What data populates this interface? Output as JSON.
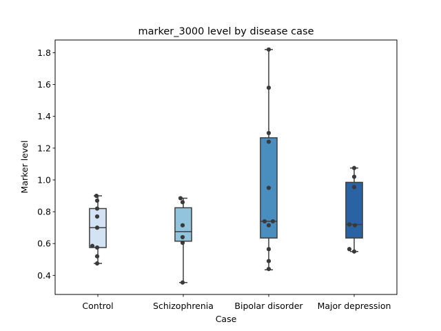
{
  "chart_data": {
    "type": "box",
    "title": "marker_3000 level by disease case",
    "xlabel": "Case",
    "ylabel": "Marker level",
    "ylim": [
      0.28,
      1.88
    ],
    "yticks": [
      0.4,
      0.6,
      0.8,
      1.0,
      1.2,
      1.4,
      1.6,
      1.8
    ],
    "ytick_labels": [
      "0.4",
      "0.6",
      "0.8",
      "1.0",
      "1.2",
      "1.4",
      "1.6",
      "1.8"
    ],
    "grid": false,
    "categories": [
      "Control",
      "Schizophrenia",
      "Bipolar disorder",
      "Major depression"
    ],
    "colors": [
      "#d4e3f3",
      "#93c4de",
      "#4a8dbf",
      "#2a63a3"
    ],
    "boxes": [
      {
        "q1": 0.575,
        "median": 0.7,
        "q3": 0.82,
        "whisker_low": 0.475,
        "whisker_high": 0.9
      },
      {
        "q1": 0.615,
        "median": 0.675,
        "q3": 0.825,
        "whisker_low": 0.355,
        "whisker_high": 0.885
      },
      {
        "q1": 0.635,
        "median": 0.74,
        "q3": 1.265,
        "whisker_low": 0.435,
        "whisker_high": 1.82
      },
      {
        "q1": 0.635,
        "median": 0.72,
        "q3": 0.985,
        "whisker_low": 0.55,
        "whisker_high": 1.075
      }
    ],
    "points": [
      [
        {
          "y": 0.9,
          "dx": -2
        },
        {
          "y": 0.87,
          "dx": -1
        },
        {
          "y": 0.82,
          "dx": -1
        },
        {
          "y": 0.77,
          "dx": -1
        },
        {
          "y": 0.7,
          "dx": -1
        },
        {
          "y": 0.585,
          "dx": -8
        },
        {
          "y": 0.575,
          "dx": -1
        },
        {
          "y": 0.52,
          "dx": -1
        },
        {
          "y": 0.475,
          "dx": -1
        }
      ],
      [
        {
          "y": 0.885,
          "dx": -4
        },
        {
          "y": 0.86,
          "dx": -1
        },
        {
          "y": 0.715,
          "dx": -1
        },
        {
          "y": 0.64,
          "dx": -1
        },
        {
          "y": 0.605,
          "dx": -1
        },
        {
          "y": 0.355,
          "dx": -1
        }
      ],
      [
        {
          "y": 1.82,
          "dx": 0
        },
        {
          "y": 1.58,
          "dx": 0
        },
        {
          "y": 1.295,
          "dx": 0
        },
        {
          "y": 1.24,
          "dx": 0
        },
        {
          "y": 0.95,
          "dx": 0
        },
        {
          "y": 0.74,
          "dx": -6
        },
        {
          "y": 0.74,
          "dx": 6
        },
        {
          "y": 0.715,
          "dx": 0
        },
        {
          "y": 0.565,
          "dx": 0
        },
        {
          "y": 0.49,
          "dx": 0
        },
        {
          "y": 0.44,
          "dx": 0
        }
      ],
      [
        {
          "y": 1.075,
          "dx": 0
        },
        {
          "y": 1.02,
          "dx": 0
        },
        {
          "y": 0.955,
          "dx": 0
        },
        {
          "y": 0.72,
          "dx": -7
        },
        {
          "y": 0.715,
          "dx": 1
        },
        {
          "y": 0.565,
          "dx": -7
        },
        {
          "y": 0.55,
          "dx": 0
        }
      ]
    ]
  }
}
